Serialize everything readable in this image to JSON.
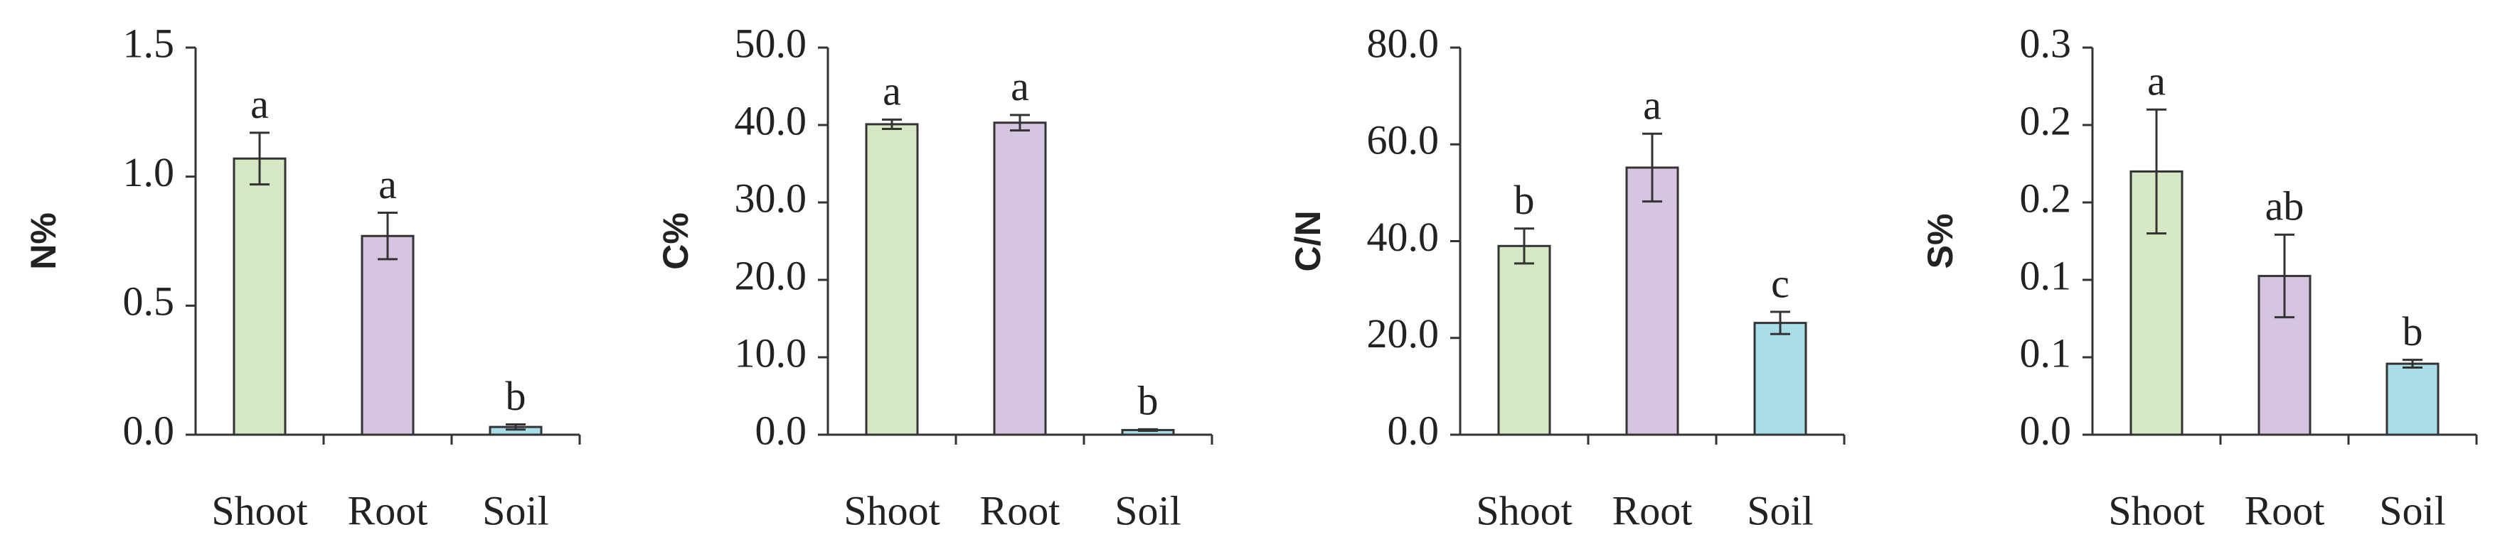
{
  "chart_data": [
    {
      "type": "bar",
      "y_label": "N%",
      "categories": [
        "Shoot",
        "Root",
        "Soil"
      ],
      "values": [
        1.07,
        0.77,
        0.03
      ],
      "errors": [
        0.1,
        0.09,
        0.01
      ],
      "letters": [
        "a",
        "a",
        "b"
      ],
      "colors": [
        "#d5e8c3",
        "#d5c5e0",
        "#a9dde7"
      ],
      "ylim": [
        0,
        1.5
      ],
      "yticks": [
        {
          "value": 0,
          "label": "0.0"
        },
        {
          "value": 0.5,
          "label": "0.5"
        },
        {
          "value": 1,
          "label": "1.0"
        },
        {
          "value": 1.5,
          "label": "1.5"
        }
      ]
    },
    {
      "type": "bar",
      "y_label": "C%",
      "categories": [
        "Shoot",
        "Root",
        "Soil"
      ],
      "values": [
        40.1,
        40.3,
        0.6
      ],
      "errors": [
        0.6,
        1.0,
        0.1
      ],
      "letters": [
        "a",
        "a",
        "b"
      ],
      "colors": [
        "#d5e8c3",
        "#d5c5e0",
        "#a9dde7"
      ],
      "ylim": [
        0,
        50
      ],
      "yticks": [
        {
          "value": 0,
          "label": "0.0"
        },
        {
          "value": 10,
          "label": "10.0"
        },
        {
          "value": 20,
          "label": "20.0"
        },
        {
          "value": 30,
          "label": "30.0"
        },
        {
          "value": 40,
          "label": "40.0"
        },
        {
          "value": 50,
          "label": "50.0"
        }
      ]
    },
    {
      "type": "bar",
      "y_label": "C/N",
      "categories": [
        "Shoot",
        "Root",
        "Soil"
      ],
      "values": [
        39.0,
        55.2,
        23.1
      ],
      "errors": [
        3.6,
        7.0,
        2.3
      ],
      "letters": [
        "b",
        "a",
        "c"
      ],
      "colors": [
        "#d5e8c3",
        "#d5c5e0",
        "#a9dde7"
      ],
      "ylim": [
        0,
        80
      ],
      "yticks": [
        {
          "value": 0,
          "label": "0.0"
        },
        {
          "value": 20,
          "label": "20.0"
        },
        {
          "value": 40,
          "label": "40.0"
        },
        {
          "value": 60,
          "label": "60.0"
        },
        {
          "value": 80,
          "label": "80.0"
        }
      ]
    },
    {
      "type": "bar",
      "y_label": "S%",
      "categories": [
        "Shoot",
        "Root",
        "Soil"
      ],
      "values": [
        0.204,
        0.123,
        0.055
      ],
      "errors": [
        0.048,
        0.032,
        0.003
      ],
      "letters": [
        "a",
        "ab",
        "b"
      ],
      "colors": [
        "#d5e8c3",
        "#d5c5e0",
        "#a9dde7"
      ],
      "ylim": [
        0,
        0.3
      ],
      "yticks": [
        {
          "value": 0,
          "label": "0.0"
        },
        {
          "value": 0.06,
          "label": "0.1"
        },
        {
          "value": 0.12,
          "label": "0.1"
        },
        {
          "value": 0.18,
          "label": "0.2"
        },
        {
          "value": 0.24,
          "label": "0.2"
        },
        {
          "value": 0.3,
          "label": "0.3"
        }
      ]
    }
  ]
}
